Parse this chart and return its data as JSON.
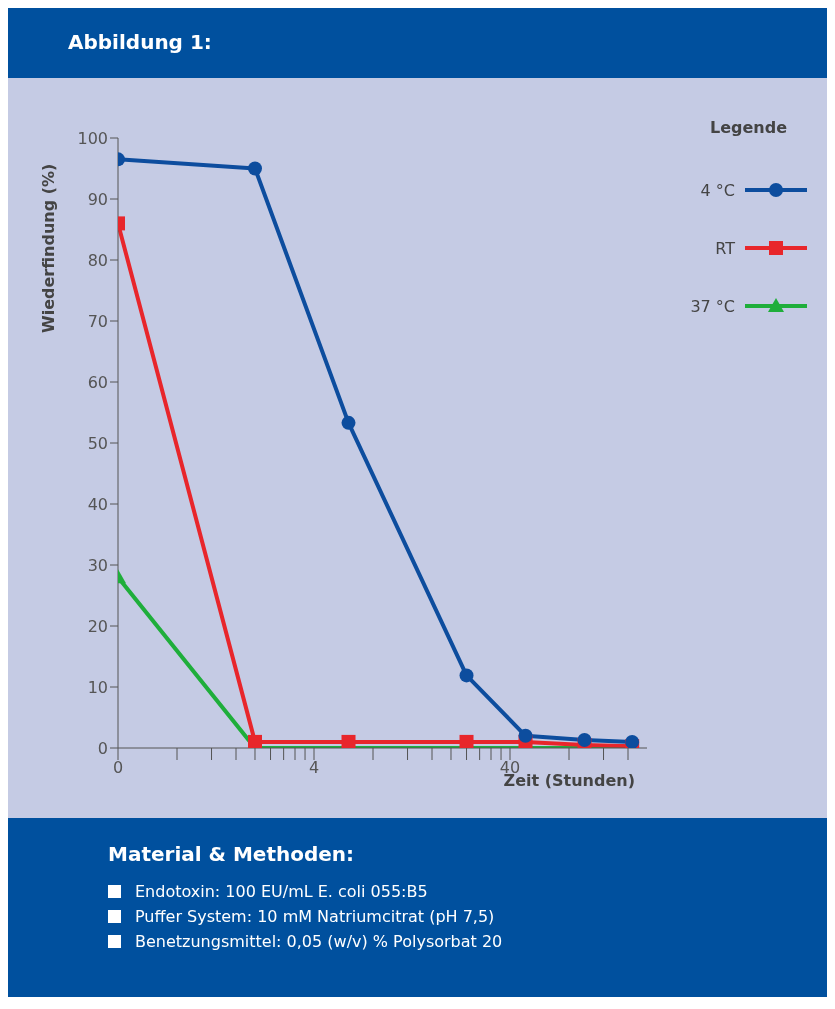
{
  "chart_data": {
    "type": "line",
    "title": "Abbildung 1:",
    "ylabel": "Wiederfindung (%)",
    "xlabel": "Zeit (Stunden)",
    "legend_title": "Legende",
    "legend": "top right",
    "log": "x",
    "grid": false,
    "x": [
      0.4,
      2,
      6,
      24,
      48,
      96,
      168
    ],
    "xlim": [
      0.4,
      200
    ],
    "xticks": [
      {
        "value": 0.4,
        "label": "0"
      },
      {
        "value": 0.8,
        "label": null
      },
      {
        "value": 1.2,
        "label": null
      },
      {
        "value": 1.6,
        "label": null
      },
      {
        "value": 2,
        "label": null
      },
      {
        "value": 2.4,
        "label": null
      },
      {
        "value": 2.8,
        "label": null
      },
      {
        "value": 3.2,
        "label": null
      },
      {
        "value": 3.6,
        "label": null
      },
      4,
      {
        "value": 8,
        "label": null
      },
      {
        "value": 12,
        "label": null
      },
      {
        "value": 16,
        "label": null
      },
      {
        "value": 20,
        "label": null
      },
      {
        "value": 24,
        "label": null
      },
      {
        "value": 28,
        "label": null
      },
      {
        "value": 32,
        "label": null
      },
      {
        "value": 36,
        "label": null
      },
      40,
      {
        "value": 80,
        "label": null
      },
      {
        "value": 120,
        "label": null
      },
      {
        "value": 160,
        "label": null
      }
    ],
    "ylim": [
      0,
      100
    ],
    "yticks": [
      0,
      10,
      20,
      30,
      40,
      50,
      60,
      70,
      80,
      90,
      100
    ],
    "series": [
      {
        "name": "4 °C",
        "color": "#0d4d9e",
        "marker": "circle",
        "values": [
          96.5,
          95,
          53.3,
          11.9,
          2,
          1.3,
          1
        ]
      },
      {
        "name": "RT",
        "color": "#e8262b",
        "marker": "square",
        "values": [
          86,
          1,
          1,
          1,
          1,
          0.5,
          0.3
        ]
      },
      {
        "name": "37 °C",
        "color": "#1fae3b",
        "marker": "triangle",
        "values": [
          28,
          0,
          0,
          0,
          0,
          0,
          0
        ]
      }
    ],
    "annotations": [
      "Material & Methoden:",
      "Endotoxin: 100 EU/mL E. coli 055:B5",
      "Puffer System: 10 mM Natriumcitrat (pH 7,5)",
      "Benetzungsmittel: 0,05 (w/v) % Polysorbat 20"
    ]
  }
}
